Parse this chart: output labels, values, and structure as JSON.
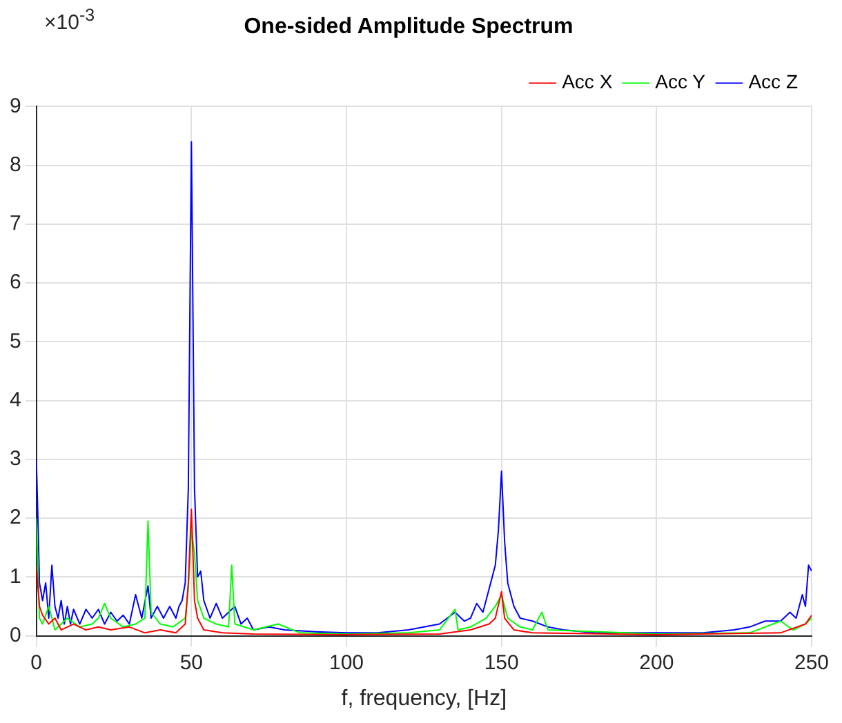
{
  "chart_data": {
    "type": "line",
    "title": "One-sided Amplitude Spectrum",
    "xlabel": "f, frequency, [Hz]",
    "annotations": [
      "×10$^{-3}$"
    ],
    "xlim": [
      0,
      250
    ],
    "xticks": [
      0,
      50,
      100,
      150,
      200,
      250
    ],
    "ylim": [
      0,
      9
    ],
    "yticks": [
      0,
      1,
      2,
      3,
      4,
      5,
      6,
      7,
      8,
      9
    ],
    "grid": true,
    "legend": "top right",
    "marker": "none",
    "line_style": "solid",
    "series": [
      {
        "name": "Acc X",
        "color": "#ff0000",
        "x": [
          0,
          1,
          2,
          4,
          6,
          8,
          12,
          16,
          20,
          24,
          30,
          35,
          40,
          45,
          48,
          49,
          50,
          51,
          52,
          54,
          60,
          70,
          100,
          130,
          140,
          146,
          148,
          150,
          151,
          154,
          160,
          200,
          240,
          248,
          250
        ],
        "values": [
          1.2,
          0.5,
          0.35,
          0.2,
          0.3,
          0.1,
          0.2,
          0.1,
          0.15,
          0.1,
          0.15,
          0.05,
          0.1,
          0.05,
          0.2,
          0.9,
          2.15,
          0.6,
          0.3,
          0.1,
          0.05,
          0.03,
          0.02,
          0.03,
          0.1,
          0.2,
          0.3,
          0.75,
          0.3,
          0.1,
          0.05,
          0.02,
          0.05,
          0.2,
          0.35
        ]
      },
      {
        "name": "Acc Y",
        "color": "#00ff00",
        "x": [
          0,
          1,
          2,
          4,
          6,
          10,
          14,
          18,
          20,
          22,
          24,
          28,
          32,
          35,
          36,
          37,
          40,
          44,
          48,
          49,
          50,
          51,
          52,
          54,
          58,
          62,
          63,
          64,
          70,
          78,
          85,
          100,
          120,
          130,
          135,
          136,
          140,
          145,
          148,
          150,
          152,
          156,
          160,
          163,
          165,
          200,
          230,
          240,
          244,
          248,
          250
        ],
        "values": [
          2.0,
          0.3,
          0.2,
          0.5,
          0.1,
          0.3,
          0.15,
          0.2,
          0.3,
          0.55,
          0.3,
          0.15,
          0.2,
          0.3,
          1.95,
          0.4,
          0.2,
          0.15,
          0.3,
          0.8,
          1.8,
          1.4,
          0.6,
          0.3,
          0.2,
          0.15,
          1.2,
          0.2,
          0.1,
          0.2,
          0.05,
          0.03,
          0.05,
          0.1,
          0.45,
          0.1,
          0.15,
          0.3,
          0.5,
          0.7,
          0.3,
          0.15,
          0.1,
          0.4,
          0.1,
          0.03,
          0.05,
          0.25,
          0.1,
          0.2,
          0.3
        ]
      },
      {
        "name": "Acc Z",
        "color": "#0000ff",
        "x": [
          0,
          0.5,
          1,
          2,
          3,
          4,
          5,
          6,
          7,
          8,
          9,
          10,
          11,
          12,
          14,
          16,
          18,
          20,
          22,
          24,
          26,
          28,
          30,
          32,
          34,
          36,
          37,
          39,
          41,
          43,
          45,
          46,
          47,
          48,
          49,
          50,
          51,
          52,
          53,
          54,
          56,
          58,
          60,
          62,
          64,
          66,
          68,
          70,
          75,
          80,
          90,
          100,
          110,
          120,
          125,
          130,
          135,
          138,
          140,
          142,
          144,
          146,
          148,
          149,
          150,
          151,
          152,
          154,
          156,
          160,
          165,
          170,
          180,
          200,
          215,
          225,
          230,
          235,
          240,
          243,
          245,
          247,
          248,
          249,
          250
        ],
        "values": [
          3.0,
          2.0,
          0.9,
          0.6,
          0.9,
          0.3,
          1.2,
          0.5,
          0.3,
          0.6,
          0.2,
          0.5,
          0.2,
          0.45,
          0.2,
          0.45,
          0.3,
          0.45,
          0.2,
          0.4,
          0.25,
          0.35,
          0.2,
          0.7,
          0.3,
          0.85,
          0.3,
          0.5,
          0.3,
          0.5,
          0.3,
          0.5,
          0.6,
          0.9,
          2.5,
          8.4,
          2.5,
          1.0,
          1.1,
          0.6,
          0.3,
          0.55,
          0.3,
          0.4,
          0.5,
          0.2,
          0.3,
          0.1,
          0.15,
          0.1,
          0.07,
          0.05,
          0.05,
          0.1,
          0.15,
          0.2,
          0.4,
          0.25,
          0.3,
          0.55,
          0.4,
          0.8,
          1.2,
          1.8,
          2.8,
          1.6,
          0.9,
          0.5,
          0.3,
          0.25,
          0.15,
          0.1,
          0.05,
          0.05,
          0.05,
          0.1,
          0.15,
          0.25,
          0.25,
          0.4,
          0.3,
          0.7,
          0.5,
          1.2,
          1.1
        ]
      }
    ]
  }
}
